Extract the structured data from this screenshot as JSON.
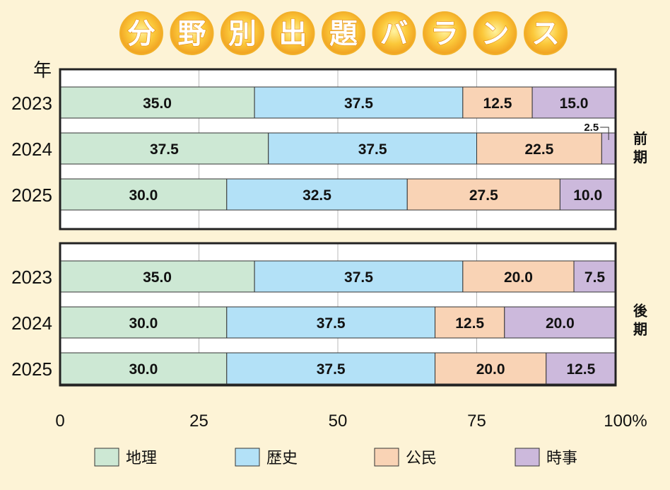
{
  "chart_data": {
    "type": "bar",
    "orientation": "horizontal-stacked-100",
    "title": "分野別出題バランス",
    "y_axis_unit_label": "年",
    "x_ticks": [
      "0",
      "25",
      "50",
      "75",
      "100%"
    ],
    "xlim": [
      0,
      100
    ],
    "grid": true,
    "legend_position": "bottom",
    "series_names": [
      "地理",
      "歴史",
      "公民",
      "時事"
    ],
    "series_colors": [
      "#cde8d4",
      "#b3e1f7",
      "#f9d3b5",
      "#ccb9dc"
    ],
    "groups": [
      {
        "label": "前期",
        "rows": [
          {
            "year": "2023",
            "values": [
              35.0,
              37.5,
              12.5,
              15.0
            ],
            "labels": [
              "35.0",
              "37.5",
              "12.5",
              "15.0"
            ]
          },
          {
            "year": "2024",
            "values": [
              37.5,
              37.5,
              22.5,
              2.5
            ],
            "labels": [
              "37.5",
              "37.5",
              "22.5",
              "2.5"
            ]
          },
          {
            "year": "2025",
            "values": [
              30.0,
              32.5,
              27.5,
              10.0
            ],
            "labels": [
              "30.0",
              "32.5",
              "27.5",
              "10.0"
            ]
          }
        ]
      },
      {
        "label": "後期",
        "rows": [
          {
            "year": "2023",
            "values": [
              35.0,
              37.5,
              20.0,
              7.5
            ],
            "labels": [
              "35.0",
              "37.5",
              "20.0",
              "7.5"
            ]
          },
          {
            "year": "2024",
            "values": [
              30.0,
              37.5,
              12.5,
              20.0
            ],
            "labels": [
              "30.0",
              "37.5",
              "12.5",
              "20.0"
            ]
          },
          {
            "year": "2025",
            "values": [
              30.0,
              37.5,
              20.0,
              12.5
            ],
            "labels": [
              "30.0",
              "37.5",
              "20.0",
              "12.5"
            ]
          }
        ]
      }
    ]
  }
}
